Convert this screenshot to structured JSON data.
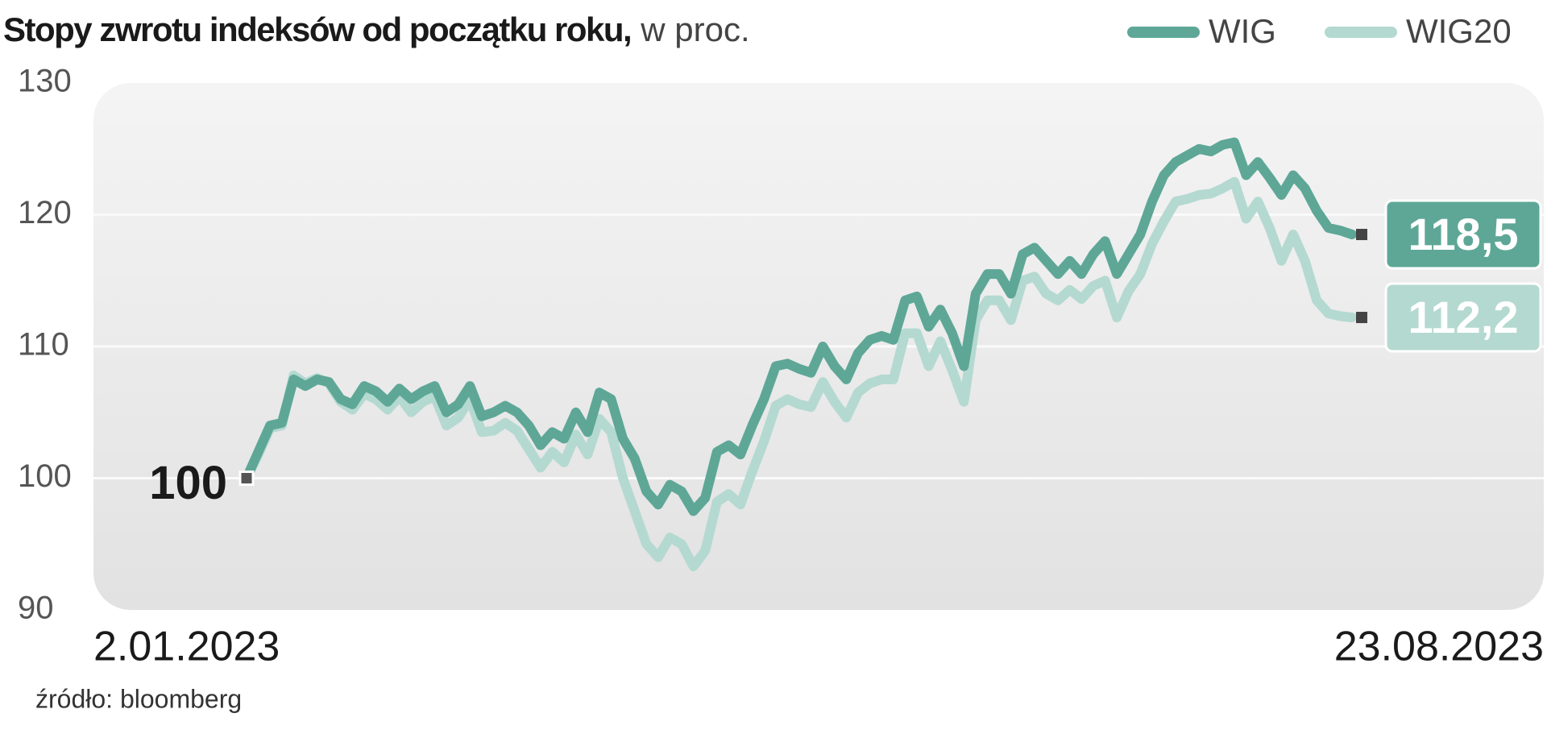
{
  "chart_data": {
    "type": "line",
    "title": "Stopy zwrotu indeksów od początku roku,",
    "subtitle": "w proc.",
    "source": "źródło: bloomberg",
    "categories": [
      "2.01.2023",
      null,
      null,
      null,
      null,
      null,
      null,
      null,
      null,
      null,
      null,
      null,
      null,
      null,
      null,
      null,
      null,
      null,
      null,
      null,
      null,
      null,
      null,
      null,
      null,
      null,
      null,
      null,
      null,
      null,
      null,
      null,
      null,
      null,
      null,
      null,
      null,
      null,
      null,
      null,
      null,
      null,
      null,
      null,
      null,
      null,
      null,
      null,
      null,
      null,
      null,
      null,
      null,
      null,
      null,
      null,
      null,
      null,
      null,
      null,
      null,
      null,
      null,
      null,
      null,
      null,
      null,
      null,
      null,
      null,
      null,
      null,
      null,
      null,
      null,
      null,
      null,
      null,
      null,
      null,
      null,
      null,
      null,
      null,
      null,
      null,
      null,
      null,
      null,
      null,
      null,
      null,
      null,
      null,
      "23.08.2023"
    ],
    "series": [
      {
        "name": "WIG",
        "color": "#5ea797",
        "values": [
          100,
          102,
          104,
          104.2,
          107.5,
          107,
          107.5,
          107.3,
          106,
          105.6,
          107,
          106.6,
          105.8,
          106.8,
          106,
          106.6,
          107,
          105,
          105.6,
          107,
          104.7,
          105,
          105.5,
          105,
          104,
          102.5,
          103.5,
          103,
          105,
          103.5,
          106.5,
          106,
          103,
          101.5,
          99,
          98,
          99.5,
          99,
          97.5,
          98.5,
          102,
          102.5,
          101.8,
          104,
          106,
          108.5,
          108.7,
          108.3,
          108,
          110,
          108.5,
          107.5,
          109.5,
          110.5,
          110.8,
          110.5,
          113.5,
          113.8,
          111.5,
          112.8,
          111,
          108.5,
          114,
          115.5,
          115.5,
          114,
          117,
          117.5,
          116.5,
          115.5,
          116.5,
          115.5,
          117,
          118,
          115.5,
          117,
          118.5,
          121,
          123,
          124,
          124.5,
          125,
          124.8,
          125.3,
          125.5,
          123,
          124,
          122.8,
          121.5,
          123,
          122,
          120.3,
          119,
          118.8,
          118.5
        ],
        "value_labels": [
          null,
          null,
          null,
          null,
          null,
          null,
          null,
          null,
          null,
          null,
          null,
          null,
          null,
          null,
          null,
          null,
          null,
          null,
          null,
          null,
          null,
          null,
          null,
          null,
          null,
          null,
          null,
          null,
          null,
          null,
          null,
          null,
          null,
          null,
          null,
          null,
          null,
          null,
          null,
          null,
          null,
          null,
          null,
          null,
          null,
          null,
          null,
          null,
          null,
          null,
          null,
          null,
          null,
          null,
          null,
          null,
          null,
          null,
          null,
          null,
          null,
          null,
          null,
          null,
          null,
          null,
          null,
          null,
          null,
          null,
          null,
          null,
          null,
          null,
          null,
          null,
          null,
          null,
          null,
          null,
          null,
          null,
          null,
          null,
          null,
          null,
          null,
          null,
          null,
          null,
          null,
          null,
          null,
          null,
          "118,5"
        ]
      },
      {
        "name": "WIG20",
        "color": "#b4d9d0",
        "values": [
          100,
          101.8,
          103.8,
          104,
          107.8,
          107.2,
          107.6,
          107.2,
          105.8,
          105.2,
          106.4,
          106,
          105.2,
          106.2,
          105,
          105.8,
          106.2,
          104,
          104.6,
          106,
          103.5,
          103.6,
          104.2,
          103.6,
          102.2,
          100.8,
          102,
          101.2,
          103.3,
          101.8,
          104.5,
          103.5,
          100,
          97.5,
          95,
          94,
          95.5,
          95,
          93.3,
          94.5,
          98.2,
          98.8,
          98,
          100.5,
          102.8,
          105.5,
          106,
          105.6,
          105.4,
          107.3,
          105.8,
          104.6,
          106.5,
          107.2,
          107.5,
          107.5,
          111,
          111,
          108.5,
          110.4,
          108.2,
          105.8,
          112,
          113.5,
          113.5,
          112,
          115,
          115.3,
          114,
          113.5,
          114.3,
          113.6,
          114.6,
          115,
          112.2,
          114.2,
          115.5,
          117.8,
          119.5,
          121,
          121.2,
          121.5,
          121.6,
          122,
          122.5,
          119.7,
          121,
          119,
          116.5,
          118.5,
          116.5,
          113.5,
          112.5,
          112.3,
          112.2
        ],
        "value_labels": [
          null,
          null,
          null,
          null,
          null,
          null,
          null,
          null,
          null,
          null,
          null,
          null,
          null,
          null,
          null,
          null,
          null,
          null,
          null,
          null,
          null,
          null,
          null,
          null,
          null,
          null,
          null,
          null,
          null,
          null,
          null,
          null,
          null,
          null,
          null,
          null,
          null,
          null,
          null,
          null,
          null,
          null,
          null,
          null,
          null,
          null,
          null,
          null,
          null,
          null,
          null,
          null,
          null,
          null,
          null,
          null,
          null,
          null,
          null,
          null,
          null,
          null,
          null,
          null,
          null,
          null,
          null,
          null,
          null,
          null,
          null,
          null,
          null,
          null,
          null,
          null,
          null,
          null,
          null,
          null,
          null,
          null,
          null,
          null,
          null,
          null,
          null,
          null,
          null,
          null,
          null,
          null,
          null,
          null,
          "112,2"
        ]
      }
    ],
    "ylim": [
      90,
      130
    ],
    "yticks": [
      90,
      100,
      110,
      120,
      130
    ],
    "grid": true,
    "legend": "top-right"
  }
}
